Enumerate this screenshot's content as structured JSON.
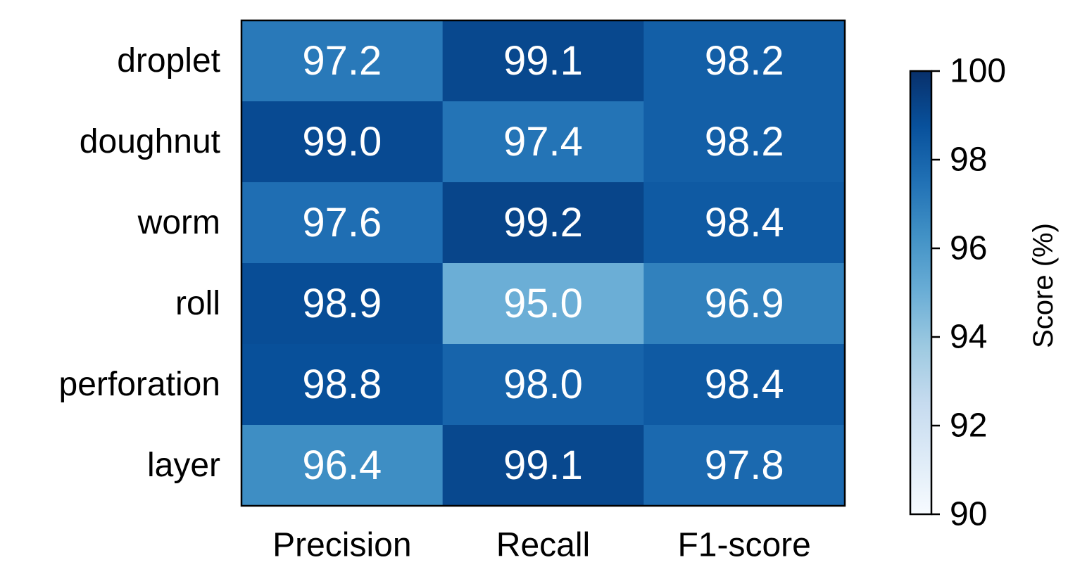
{
  "chart_data": {
    "type": "heatmap",
    "rows": [
      "droplet",
      "doughnut",
      "worm",
      "roll",
      "perforation",
      "layer"
    ],
    "columns": [
      "Precision",
      "Recall",
      "F1-score"
    ],
    "values": [
      [
        97.2,
        99.1,
        98.2
      ],
      [
        99.0,
        97.4,
        98.2
      ],
      [
        97.6,
        99.2,
        98.4
      ],
      [
        98.9,
        95.0,
        96.9
      ],
      [
        98.8,
        98.0,
        98.4
      ],
      [
        96.4,
        99.1,
        97.8
      ]
    ],
    "value_labels": [
      [
        "97.2",
        "99.1",
        "98.2"
      ],
      [
        "99.0",
        "97.4",
        "98.2"
      ],
      [
        "97.6",
        "99.2",
        "98.4"
      ],
      [
        "98.9",
        "95.0",
        "96.9"
      ],
      [
        "98.8",
        "98.0",
        "98.4"
      ],
      [
        "96.4",
        "99.1",
        "97.8"
      ]
    ],
    "colorbar": {
      "label": "Score (%)",
      "range": [
        90,
        100
      ],
      "ticks": [
        90,
        92,
        94,
        96,
        98,
        100
      ],
      "tick_labels": [
        "90",
        "92",
        "94",
        "96",
        "98",
        "100"
      ],
      "colormap": "Blues",
      "low_color": "#f7fbff",
      "high_color": "#08306b"
    }
  }
}
